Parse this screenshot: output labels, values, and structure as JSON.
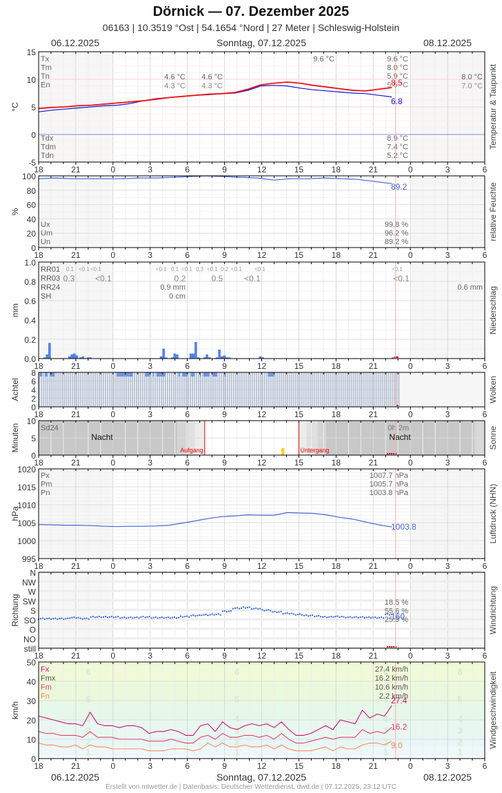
{
  "header": {
    "title": "Dörnick  —  07. Dezember 2025",
    "subtitle": "06163  |  10.3519 °Ost  |  54.1654 °Nord  |  27 Meter  |  Schleswig-Holstein",
    "date_left": "06.12.2025",
    "date_center": "Sonntag, 07.12.2025",
    "date_right": "08.12.2025"
  },
  "footer": {
    "text": "Erstellt von mtwetter.de | Datenbasis: Deutscher Wetterdienst, dwd.de | 07.12.2025, 23:12 UTC",
    "date_left": "06.12.2025",
    "date_center": "Sonntag, 07.12.2025",
    "date_right": "08.12.2025"
  },
  "x_ticks": [
    "18",
    "21",
    "0",
    "3",
    "6",
    "9",
    "12",
    "15",
    "18",
    "21",
    "0",
    "3",
    "6"
  ],
  "colors": {
    "temp": "#ee1111",
    "dewpoint": "#1111dd",
    "humidity": "#4466dd",
    "rain": "#5588ee",
    "cloud": "#6f95e0",
    "pressure": "#4466dd",
    "winddir": "#3366dd",
    "gust": "#cc1177",
    "wind_mean": "#e04466",
    "wind_min": "#ff8855",
    "now_line": "#ffaaaa",
    "sunrise": "#dd0000"
  },
  "chart_data": [
    {
      "type": "line",
      "title": "Temperatur & Taupunkt",
      "ylabel": "°C",
      "ylim": [
        -5,
        15
      ],
      "yticks": [
        "15",
        "10",
        "5",
        "0",
        "-5"
      ],
      "legend_top": [
        "Tx",
        "Tm",
        "Tn",
        "En"
      ],
      "legend_bottom": [
        "Tdx",
        "Tdm",
        "Tdn"
      ],
      "annotations": {
        "prev_day": [
          "4.6 °C",
          "4.3 °C"
        ],
        "prev_day2": [
          "4.6 °C",
          "4.3 °C"
        ],
        "mid": "9.6 °C",
        "day_stats": [
          "9.6 °C",
          "8.0 °C",
          "5.9 °C",
          "5.5 °C"
        ],
        "next_day": [
          "8.0 °C",
          "7.0 °C"
        ],
        "dew_stats": [
          "8.9 °C",
          "7.4 °C",
          "5.2 °C"
        ],
        "last_temp": "8.5",
        "last_dew": "6.8"
      },
      "series": [
        {
          "name": "Temperatur",
          "values": [
            4.7,
            4.9,
            5.0,
            5.2,
            5.3,
            5.5,
            5.7,
            5.9,
            6.1,
            6.4,
            6.7,
            6.9,
            7.1,
            7.3,
            7.4,
            7.6,
            8.2,
            9.0,
            9.3,
            9.5,
            9.3,
            8.9,
            8.6,
            8.3,
            8.0,
            7.9,
            8.2,
            8.5
          ]
        },
        {
          "name": "Taupunkt",
          "values": [
            4.1,
            4.4,
            4.6,
            4.8,
            5.0,
            5.2,
            5.3,
            5.6,
            6.1,
            6.5,
            6.7,
            6.9,
            7.1,
            7.2,
            7.4,
            7.5,
            8.0,
            8.8,
            8.9,
            8.8,
            8.4,
            8.1,
            7.9,
            7.7,
            7.5,
            7.4,
            7.1,
            6.8
          ]
        }
      ]
    },
    {
      "type": "line",
      "title": "relative Feuchte",
      "ylabel": "%",
      "ylim": [
        0,
        100
      ],
      "yticks": [
        "100",
        "80",
        "60",
        "40",
        "20",
        "0"
      ],
      "legend": [
        "Ux",
        "Um",
        "Un"
      ],
      "stats": [
        "99.8 %",
        "96.2 %",
        "89.2 %"
      ],
      "last_value": "89.2",
      "values": [
        96,
        97,
        96,
        96,
        96,
        96,
        97,
        97,
        98,
        99,
        100,
        99,
        98,
        97,
        94,
        96,
        96,
        97,
        96,
        95,
        92,
        89.2
      ]
    },
    {
      "type": "bar",
      "title": "Niederschlag",
      "ylabel": "mm",
      "ylim": [
        0,
        1.0
      ],
      "yticks": [
        "1.0",
        "0.8",
        "0.6",
        "0.4",
        "0.2",
        "0.0"
      ],
      "legend": [
        "RR01",
        "RR03",
        "RR24",
        "SH"
      ],
      "rr01_labels": [
        "0.1",
        "<0.1",
        "<0.1",
        "<0.1",
        "0.1",
        "<0.1",
        "0.3",
        "<0.1",
        "0.2",
        "<0.1",
        "<0.1",
        "<0.1"
      ],
      "rr03_labels": [
        "0.3",
        "<0.1",
        "0.2",
        "0.5",
        "<0.1",
        "<0.1"
      ],
      "rr24": "0.9 mm",
      "sh": "0 cm",
      "next_day_rr24": "0.6 mm",
      "bars": [
        {
          "h": 18.4,
          "v": 0.01
        },
        {
          "h": 18.6,
          "v": 0.04
        },
        {
          "h": 18.8,
          "v": 0.16
        },
        {
          "h": 20.4,
          "v": 0.02
        },
        {
          "h": 20.6,
          "v": 0.04
        },
        {
          "h": 20.8,
          "v": 0.05
        },
        {
          "h": 21.0,
          "v": 0.03
        },
        {
          "h": 21.3,
          "v": 0.01
        },
        {
          "h": 21.5,
          "v": 0.02
        },
        {
          "h": 21.9,
          "v": 0.01
        },
        {
          "h": 22.1,
          "v": 0.01
        },
        {
          "h": 27.8,
          "v": 0.02
        },
        {
          "h": 28.0,
          "v": 0.1
        },
        {
          "h": 28.2,
          "v": 0.01
        },
        {
          "h": 28.7,
          "v": 0.01
        },
        {
          "h": 28.9,
          "v": 0.05
        },
        {
          "h": 29.1,
          "v": 0.04
        },
        {
          "h": 30.2,
          "v": 0.05
        },
        {
          "h": 30.4,
          "v": 0.05
        },
        {
          "h": 30.6,
          "v": 0.17
        },
        {
          "h": 30.8,
          "v": 0.01
        },
        {
          "h": 31.3,
          "v": 0.01
        },
        {
          "h": 31.5,
          "v": 0.04
        },
        {
          "h": 31.7,
          "v": 0.01
        },
        {
          "h": 32.3,
          "v": 0.01
        },
        {
          "h": 32.5,
          "v": 0.09
        },
        {
          "h": 32.7,
          "v": 0.02
        },
        {
          "h": 32.9,
          "v": 0.03
        },
        {
          "h": 33.1,
          "v": 0.01
        },
        {
          "h": 33.3,
          "v": 0.01
        },
        {
          "h": 35.8,
          "v": 0.02
        },
        {
          "h": 36.0,
          "v": 0.01
        },
        {
          "h": 46.5,
          "v": 0.01
        }
      ]
    },
    {
      "type": "bar",
      "title": "Wolken",
      "ylabel": "Achtel",
      "ylim": [
        0,
        8
      ],
      "yticks": [
        "8",
        "6",
        "4",
        "2",
        "0"
      ],
      "full_cover": 8,
      "partial_segments": [
        [
          18.1,
          18.3
        ],
        [
          18.5,
          18.7
        ],
        [
          18.9,
          19.3
        ],
        [
          24.3,
          25.6
        ],
        [
          26.6,
          27.0
        ],
        [
          27.2,
          27.3
        ],
        [
          27.5,
          28.2
        ],
        [
          29.3,
          29.4
        ],
        [
          29.6,
          30.0
        ],
        [
          30.3,
          30.6
        ],
        [
          31.0,
          31.1
        ],
        [
          31.3,
          31.8
        ],
        [
          32.0,
          32.4
        ],
        [
          33.0,
          33.1
        ],
        [
          36.5,
          37.0
        ]
      ],
      "last_hour": 23.0
    },
    {
      "type": "bar",
      "title": "Sonne",
      "ylabel": "Minuten",
      "ylim": [
        0,
        10
      ],
      "yticks": [
        "10",
        "5",
        "0"
      ],
      "sd24_label": "Sd24",
      "sd24_value": "0h 2m",
      "night_label": "Nacht",
      "sunrise_label": "Aufgang",
      "sunset_label": "Untergang",
      "sunrise_h": 31.4,
      "sunset_h": 39.0,
      "sunshine_bars": [
        {
          "h": 37.6,
          "v": 2
        }
      ]
    },
    {
      "type": "line",
      "title": "Luftdruck (NHN)",
      "ylabel": "hPa",
      "ylim": [
        995,
        1020
      ],
      "yticks": [
        "1020",
        "1015",
        "1010",
        "1005",
        "1000",
        "995"
      ],
      "legend": [
        "Px",
        "Pm",
        "Pn"
      ],
      "stats": [
        "1007.7 hPa",
        "1005.7 hPa",
        "1003.8 hPa"
      ],
      "last_value": "1003.8",
      "values": [
        1004.5,
        1004.4,
        1004.3,
        1004.3,
        1004.2,
        1004.0,
        1003.9,
        1004.0,
        1004.0,
        1004.1,
        1004.3,
        1004.9,
        1005.5,
        1006.2,
        1006.7,
        1006.9,
        1007.2,
        1007.1,
        1007.1,
        1007.8,
        1007.7,
        1007.6,
        1007.2,
        1006.5,
        1006.0,
        1005.2,
        1004.4,
        1003.8
      ]
    },
    {
      "type": "scatter",
      "title": "Windrichtung",
      "ylabel": "Richtung",
      "yticks": [
        "N",
        "NW",
        "W",
        "SW",
        "S",
        "SO",
        "O",
        "NO",
        "still"
      ],
      "stats": [
        "18.5 %",
        "55.6 %",
        "25.9 %"
      ],
      "last_value": "160",
      "values": [
        140,
        140,
        140,
        145,
        140,
        148,
        148,
        148,
        145,
        145,
        148,
        145,
        145,
        145,
        150,
        155,
        158,
        160,
        175,
        190,
        193,
        188,
        180,
        172,
        165,
        160,
        155,
        152,
        148,
        150,
        147,
        147,
        146,
        145,
        160
      ]
    },
    {
      "type": "line",
      "title": "Windgeschwindigkeit",
      "ylabel": "km/h",
      "ylim": [
        0,
        50
      ],
      "yticks": [
        "50",
        "40",
        "30",
        "20",
        "10",
        "0"
      ],
      "legend": [
        "Fx",
        "Fmx",
        "Fm",
        "Fn"
      ],
      "stats": [
        "27.4 km/h",
        "16.2 km/h",
        "10.6 km/h",
        "2.2 km/h"
      ],
      "bft_labels": [
        "6",
        "5",
        "4",
        "3",
        "2",
        "1"
      ],
      "last_values": {
        "gust": "27.4",
        "mean": "16.2",
        "min": "9.0"
      },
      "series": [
        {
          "name": "Fx",
          "values": [
            22,
            21,
            20,
            19,
            18,
            18,
            17,
            24,
            18,
            17,
            17,
            16,
            17,
            17,
            16,
            13,
            14,
            14,
            15,
            14,
            12,
            12,
            17,
            18,
            14,
            19,
            16,
            15,
            17,
            18,
            17,
            18,
            16,
            19,
            15,
            12,
            12,
            13,
            15,
            17,
            15,
            20,
            19,
            18,
            25,
            21,
            23,
            22,
            27.4
          ]
        },
        {
          "name": "Fm",
          "values": [
            14,
            13,
            13,
            12,
            12,
            12,
            11,
            14,
            11,
            11,
            11,
            10,
            10,
            10,
            10,
            9,
            9,
            9,
            10,
            9,
            8,
            8,
            11,
            12,
            10,
            13,
            11,
            11,
            12,
            12,
            11,
            12,
            10,
            13,
            10,
            8,
            8,
            9,
            10,
            11,
            10,
            11,
            11,
            11,
            15,
            13,
            14,
            13,
            16.2
          ]
        },
        {
          "name": "Fn",
          "values": [
            8,
            7,
            7,
            6,
            6,
            7,
            5,
            7,
            6,
            6,
            5,
            5,
            5,
            5,
            5,
            4,
            4,
            4,
            5,
            5,
            5,
            4,
            5,
            8,
            6,
            8,
            6,
            6,
            7,
            6,
            6,
            7,
            5,
            7,
            5,
            4,
            4,
            4,
            5,
            6,
            4,
            6,
            5,
            5,
            7,
            8,
            8,
            7,
            9.0
          ]
        }
      ]
    }
  ]
}
